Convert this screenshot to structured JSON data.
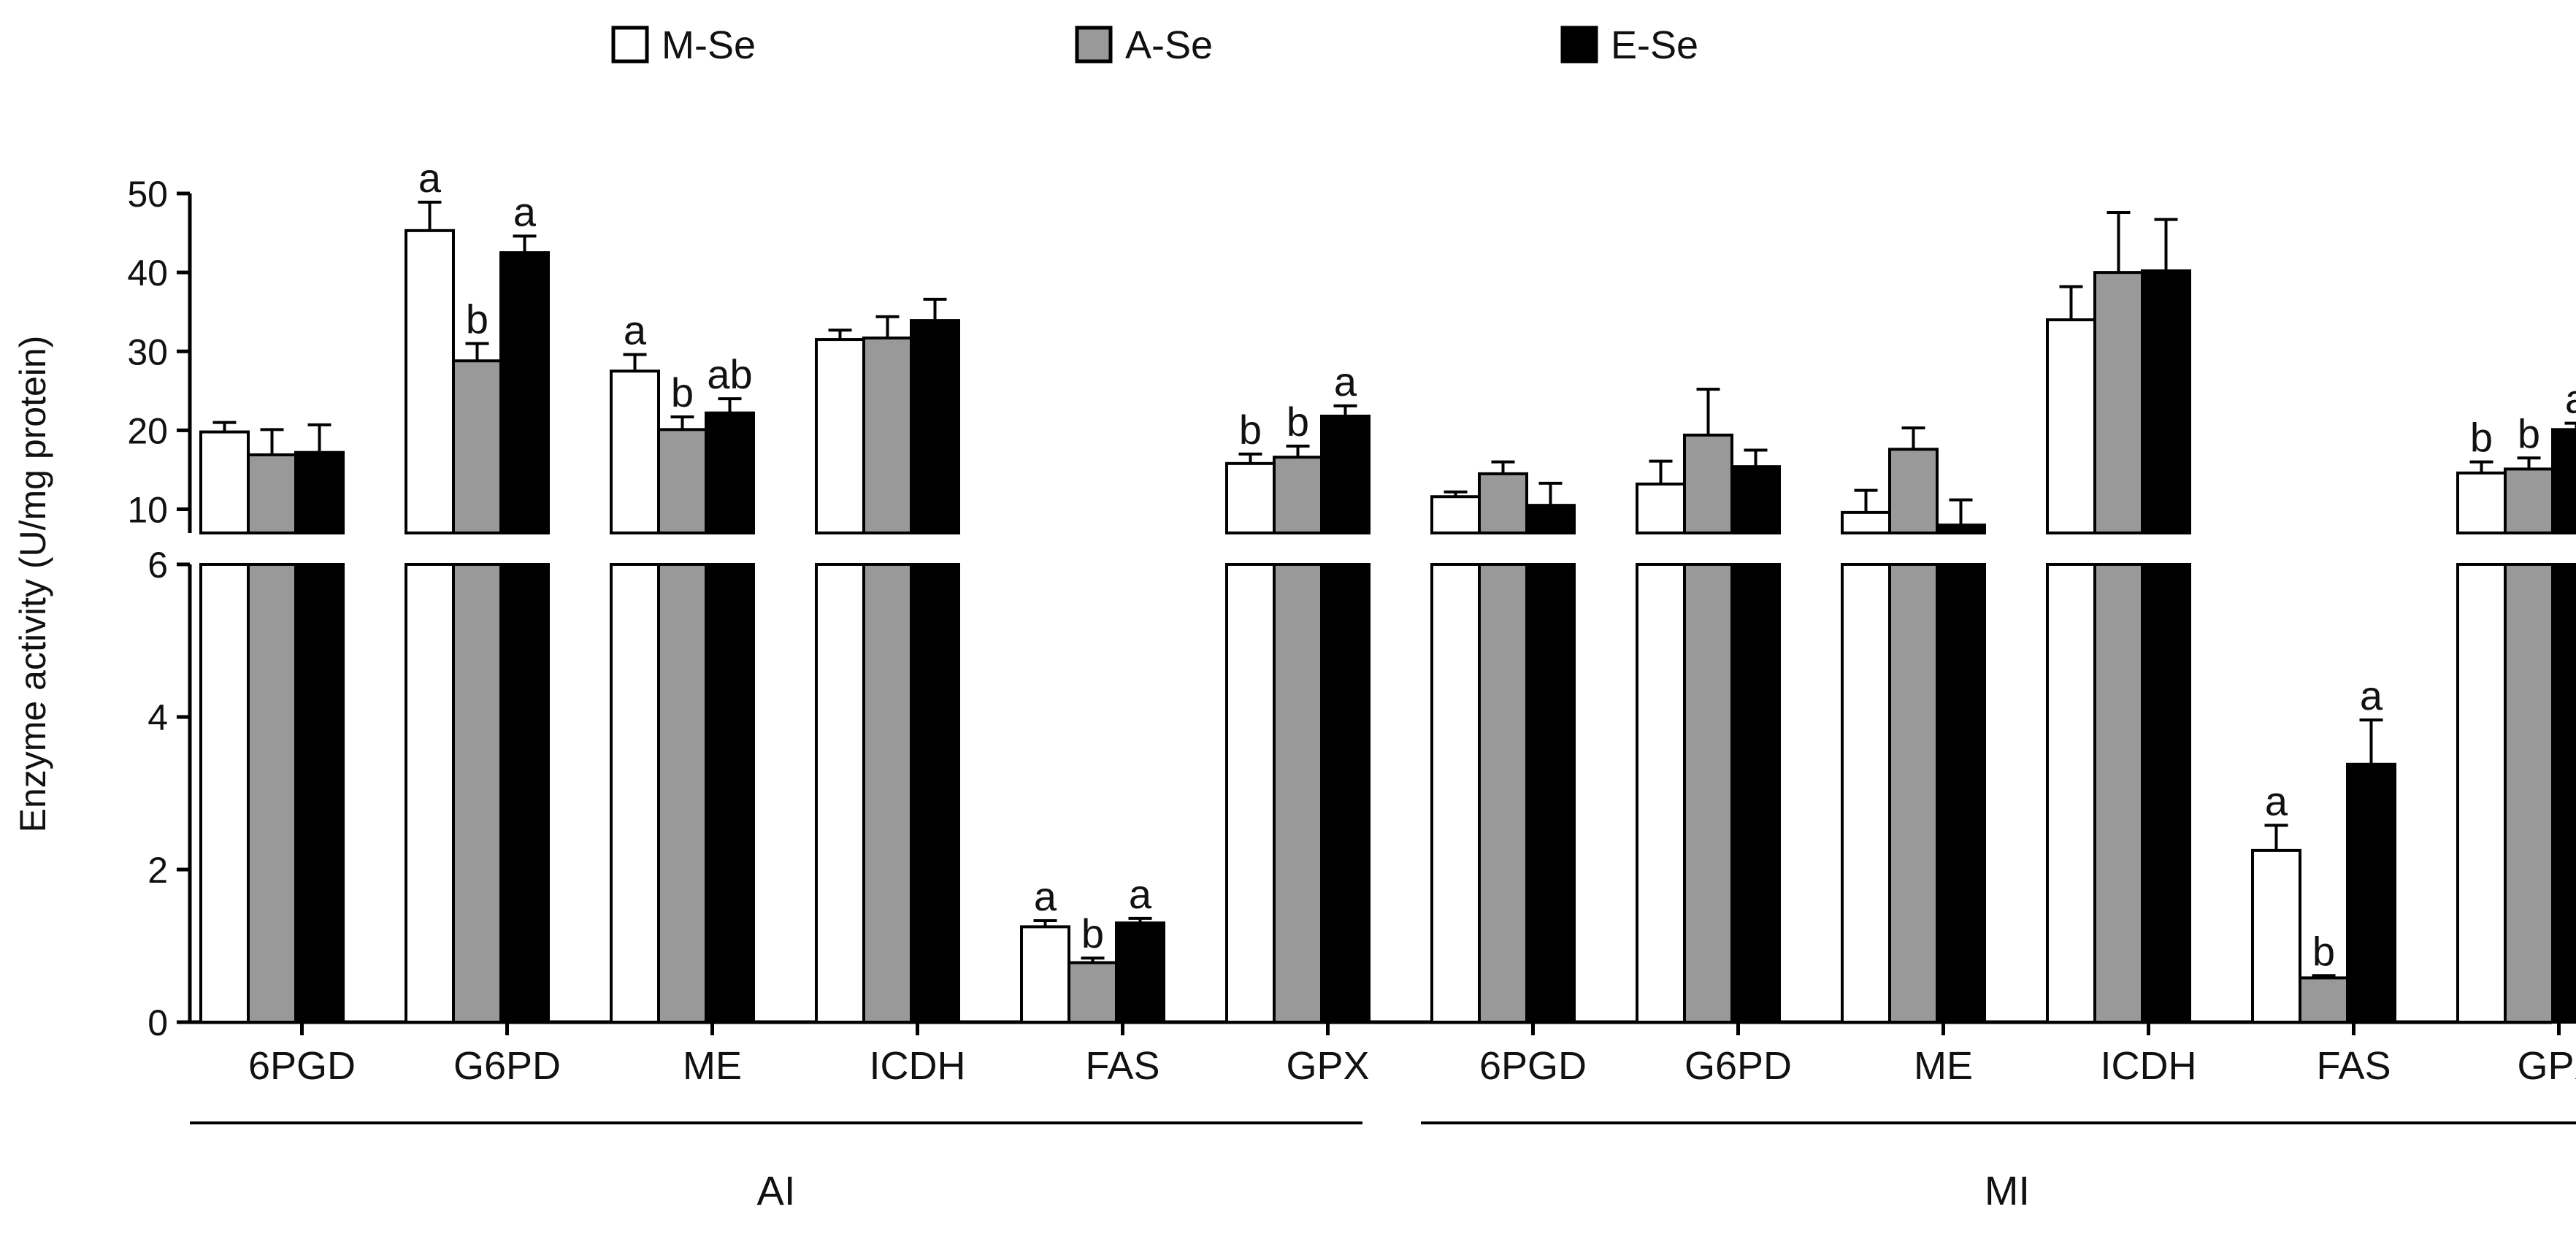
{
  "chart_data": {
    "type": "bar",
    "ylabel": "Enzyme activity (U/mg protein)",
    "y_axis": {
      "broken": true,
      "lower_range": [
        0,
        6
      ],
      "upper_range": [
        7,
        50
      ],
      "lower_ticks": [
        0,
        2,
        4,
        6
      ],
      "upper_ticks": [
        10,
        20,
        30,
        40,
        50
      ]
    },
    "series": [
      {
        "name": "M-Se",
        "color": "#ffffff"
      },
      {
        "name": "A-Se",
        "color": "#999999"
      },
      {
        "name": "E-Se",
        "color": "#000000"
      }
    ],
    "groups": [
      {
        "name": "AI",
        "categories": [
          {
            "name": "6PGD",
            "values": [
              19.8,
              16.9,
              17.2
            ],
            "errors": [
              1.2,
              3.2,
              3.5
            ],
            "letters": [
              "",
              "",
              ""
            ]
          },
          {
            "name": "G6PD",
            "values": [
              45.3,
              28.8,
              42.5
            ],
            "errors": [
              3.6,
              2.2,
              2.1
            ],
            "letters": [
              "a",
              "b",
              "a"
            ]
          },
          {
            "name": "ME",
            "values": [
              27.5,
              20.1,
              22.2
            ],
            "errors": [
              2.1,
              1.6,
              1.8
            ],
            "letters": [
              "a",
              "b",
              "ab"
            ]
          },
          {
            "name": "ICDH",
            "values": [
              31.5,
              31.7,
              33.9
            ],
            "errors": [
              1.2,
              2.7,
              2.7
            ],
            "letters": [
              "",
              "",
              ""
            ]
          },
          {
            "name": "FAS",
            "values": [
              1.25,
              0.78,
              1.3
            ],
            "errors": [
              0.08,
              0.06,
              0.06
            ],
            "letters": [
              "a",
              "b",
              "a"
            ]
          },
          {
            "name": "GPX",
            "values": [
              15.8,
              16.6,
              21.8
            ],
            "errors": [
              1.2,
              1.4,
              1.3
            ],
            "letters": [
              "b",
              "b",
              "a"
            ]
          }
        ]
      },
      {
        "name": "MI",
        "categories": [
          {
            "name": "6PGD",
            "values": [
              11.6,
              14.5,
              10.5
            ],
            "errors": [
              0.6,
              1.5,
              2.8
            ],
            "letters": [
              "",
              "",
              ""
            ]
          },
          {
            "name": "G6PD",
            "values": [
              13.2,
              19.4,
              15.4
            ],
            "errors": [
              2.9,
              5.8,
              2.1
            ],
            "letters": [
              "",
              "",
              ""
            ]
          },
          {
            "name": "ME",
            "values": [
              9.6,
              17.6,
              8.0
            ],
            "errors": [
              2.8,
              2.7,
              3.2
            ],
            "letters": [
              "",
              "",
              ""
            ]
          },
          {
            "name": "ICDH",
            "values": [
              34.0,
              40.0,
              40.2
            ],
            "errors": [
              4.2,
              7.6,
              6.5
            ],
            "letters": [
              "",
              "",
              ""
            ]
          },
          {
            "name": "FAS",
            "values": [
              2.25,
              0.58,
              3.38
            ],
            "errors": [
              0.33,
              0.03,
              0.58
            ],
            "letters": [
              "a",
              "b",
              "a"
            ]
          },
          {
            "name": "GPX",
            "values": [
              14.6,
              15.1,
              20.1
            ],
            "errors": [
              1.4,
              1.4,
              0.8
            ],
            "letters": [
              "b",
              "b",
              "a"
            ]
          }
        ]
      }
    ]
  }
}
